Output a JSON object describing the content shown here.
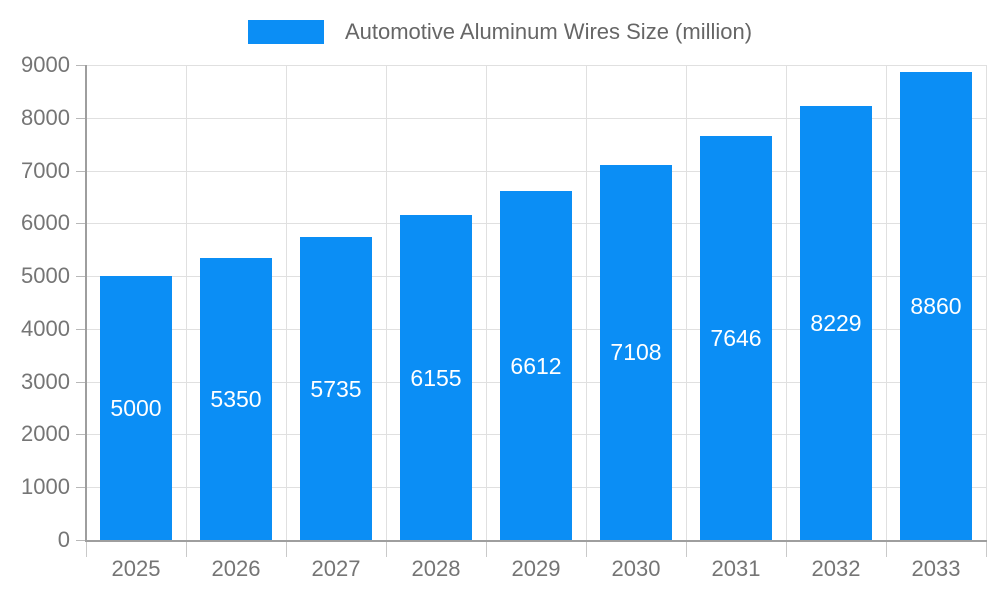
{
  "chart_data": {
    "type": "bar",
    "title": "Automotive Aluminum Wires Size (million)",
    "legend_position": "top",
    "categories": [
      "2025",
      "2026",
      "2027",
      "2028",
      "2029",
      "2030",
      "2031",
      "2032",
      "2033"
    ],
    "values": [
      5000,
      5350,
      5735,
      6155,
      6612,
      7108,
      7646,
      8229,
      8860
    ],
    "bar_value_labels": [
      "5000",
      "5350",
      "5735",
      "6155",
      "6612",
      "7108",
      "7646",
      "8229",
      "8860"
    ],
    "ylim": [
      0,
      9000
    ],
    "yticks": [
      0,
      1000,
      2000,
      3000,
      4000,
      5000,
      6000,
      7000,
      8000,
      9000
    ],
    "ytick_labels": [
      "0",
      "1000",
      "2000",
      "3000",
      "4000",
      "5000",
      "6000",
      "7000",
      "8000",
      "9000"
    ],
    "grid": true,
    "xlabel": "",
    "ylabel": ""
  },
  "colors": {
    "bar": "#0b8ef5",
    "bar_label": "#ffffff",
    "grid": "#e0e0e0",
    "axis": "#9e9e9e",
    "tick_label": "#757575",
    "legend_text": "#666666",
    "background": "#ffffff"
  }
}
